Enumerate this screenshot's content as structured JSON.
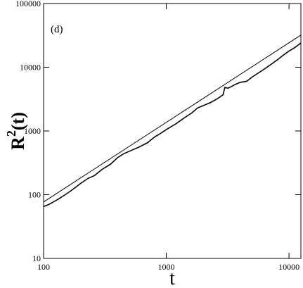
{
  "chart_data": {
    "type": "line",
    "annotation": "(d)",
    "xlabel": "t",
    "ylabel_parts": [
      "R",
      "2",
      "(t)"
    ],
    "log_x": true,
    "log_y": true,
    "xlim": [
      100,
      12500
    ],
    "ylim": [
      10,
      100000
    ],
    "xticks": [
      100,
      1000,
      10000
    ],
    "yticks": [
      10,
      100,
      1000,
      10000,
      100000
    ],
    "series": [
      {
        "color": "#000000",
        "x": [
          100,
          12500
        ],
        "values": [
          77,
          32000
        ]
      },
      {
        "color": "#000000",
        "x": [
          100,
          110,
          120,
          130,
          150,
          170,
          200,
          230,
          260,
          300,
          350,
          400,
          450,
          500,
          600,
          700,
          800,
          900,
          1000,
          1200,
          1400,
          1600,
          1800,
          2000,
          2300,
          2600,
          2900,
          3000,
          3200,
          3600,
          4000,
          4500,
          5000,
          6000,
          7000,
          8000,
          9000,
          10000,
          11000,
          12500
        ],
        "values": [
          65,
          70,
          77,
          84,
          100,
          118,
          150,
          180,
          200,
          250,
          300,
          380,
          440,
          480,
          560,
          650,
          800,
          920,
          1050,
          1300,
          1600,
          1900,
          2300,
          2500,
          2800,
          3200,
          3700,
          4800,
          4700,
          5300,
          5800,
          6000,
          7000,
          8800,
          10800,
          13000,
          15500,
          18000,
          20000,
          24000
        ]
      }
    ]
  }
}
